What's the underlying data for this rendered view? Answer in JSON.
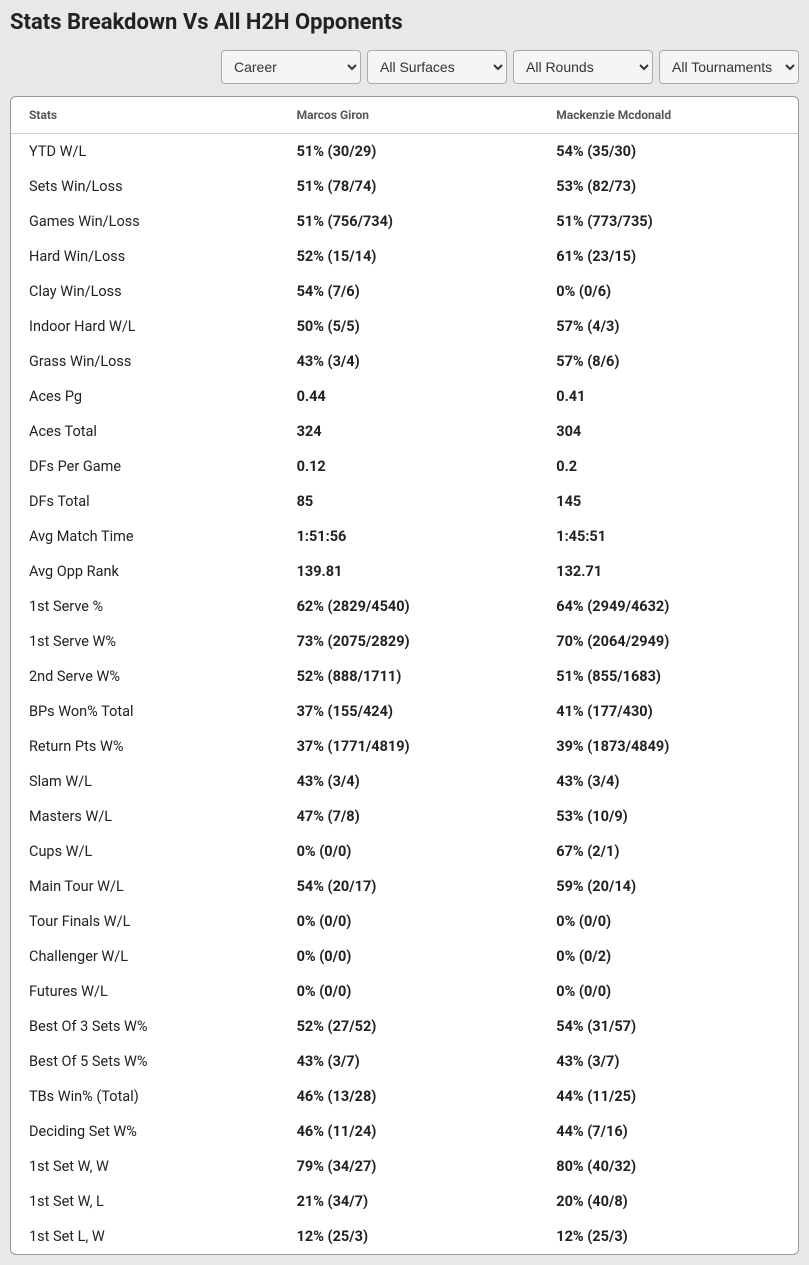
{
  "title": "Stats Breakdown Vs All H2H Opponents",
  "filters": {
    "period": "Career",
    "surface": "All Surfaces",
    "round": "All Rounds",
    "tournament": "All Tournaments"
  },
  "table": {
    "headers": {
      "stats": "Stats",
      "player1": "Marcos Giron",
      "player2": "Mackenzie Mcdonald"
    },
    "rows": [
      {
        "label": "YTD W/L",
        "p1": "51% (30/29)",
        "p2": "54% (35/30)"
      },
      {
        "label": "Sets Win/Loss",
        "p1": "51% (78/74)",
        "p2": "53% (82/73)"
      },
      {
        "label": "Games Win/Loss",
        "p1": "51% (756/734)",
        "p2": "51% (773/735)"
      },
      {
        "label": "Hard Win/Loss",
        "p1": "52% (15/14)",
        "p2": "61% (23/15)"
      },
      {
        "label": "Clay Win/Loss",
        "p1": "54% (7/6)",
        "p2": "0% (0/6)"
      },
      {
        "label": "Indoor Hard W/L",
        "p1": "50% (5/5)",
        "p2": "57% (4/3)"
      },
      {
        "label": "Grass Win/Loss",
        "p1": "43% (3/4)",
        "p2": "57% (8/6)"
      },
      {
        "label": "Aces Pg",
        "p1": "0.44",
        "p2": "0.41"
      },
      {
        "label": "Aces Total",
        "p1": "324",
        "p2": "304"
      },
      {
        "label": "DFs Per Game",
        "p1": "0.12",
        "p2": "0.2"
      },
      {
        "label": "DFs Total",
        "p1": "85",
        "p2": "145"
      },
      {
        "label": "Avg Match Time",
        "p1": "1:51:56",
        "p2": "1:45:51"
      },
      {
        "label": "Avg Opp Rank",
        "p1": "139.81",
        "p2": "132.71"
      },
      {
        "label": "1st Serve %",
        "p1": "62% (2829/4540)",
        "p2": "64% (2949/4632)"
      },
      {
        "label": "1st Serve W%",
        "p1": "73% (2075/2829)",
        "p2": "70% (2064/2949)"
      },
      {
        "label": "2nd Serve W%",
        "p1": "52% (888/1711)",
        "p2": "51% (855/1683)"
      },
      {
        "label": "BPs Won% Total",
        "p1": "37% (155/424)",
        "p2": "41% (177/430)"
      },
      {
        "label": "Return Pts W%",
        "p1": "37% (1771/4819)",
        "p2": "39% (1873/4849)"
      },
      {
        "label": "Slam W/L",
        "p1": "43% (3/4)",
        "p2": "43% (3/4)"
      },
      {
        "label": "Masters W/L",
        "p1": "47% (7/8)",
        "p2": "53% (10/9)"
      },
      {
        "label": "Cups W/L",
        "p1": "0% (0/0)",
        "p2": "67% (2/1)"
      },
      {
        "label": "Main Tour W/L",
        "p1": "54% (20/17)",
        "p2": "59% (20/14)"
      },
      {
        "label": "Tour Finals W/L",
        "p1": "0% (0/0)",
        "p2": "0% (0/0)"
      },
      {
        "label": "Challenger W/L",
        "p1": "0% (0/0)",
        "p2": "0% (0/2)"
      },
      {
        "label": "Futures W/L",
        "p1": "0% (0/0)",
        "p2": "0% (0/0)"
      },
      {
        "label": "Best Of 3 Sets W%",
        "p1": "52% (27/52)",
        "p2": "54% (31/57)"
      },
      {
        "label": "Best Of 5 Sets W%",
        "p1": "43% (3/7)",
        "p2": "43% (3/7)"
      },
      {
        "label": "TBs Win% (Total)",
        "p1": "46% (13/28)",
        "p2": "44% (11/25)"
      },
      {
        "label": "Deciding Set W%",
        "p1": "46% (11/24)",
        "p2": "44% (7/16)"
      },
      {
        "label": "1st Set W, W",
        "p1": "79% (34/27)",
        "p2": "80% (40/32)"
      },
      {
        "label": "1st Set W, L",
        "p1": "21% (34/7)",
        "p2": "20% (40/8)"
      },
      {
        "label": "1st Set L, W",
        "p1": "12% (25/3)",
        "p2": "12% (25/3)"
      }
    ]
  }
}
